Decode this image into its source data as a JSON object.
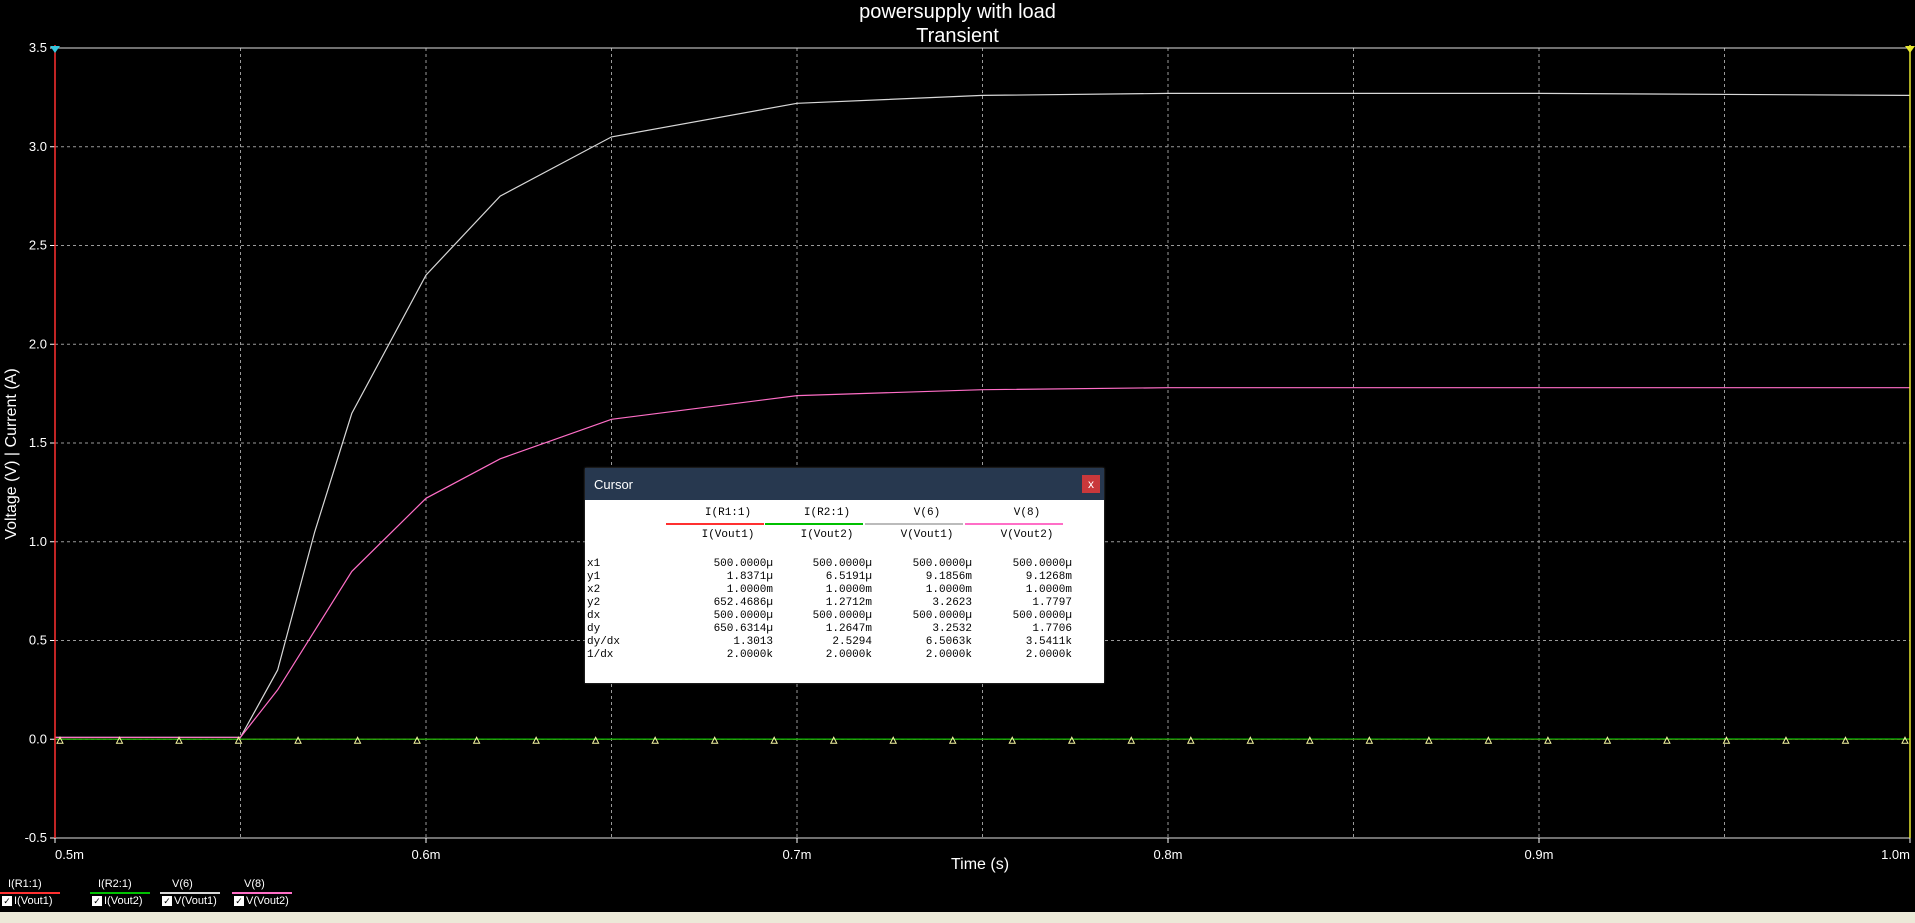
{
  "chart_data": {
    "type": "line",
    "title": "powersupply with load",
    "subtitle": "Transient",
    "xlabel": "Time (s)",
    "ylabel": "Voltage (V) | Current (A)",
    "x_ticks": [
      "0.5m",
      "0.6m",
      "0.7m",
      "0.8m",
      "0.9m",
      "1.0m"
    ],
    "y_ticks": [
      "3.5",
      "3.0",
      "2.5",
      "2.0",
      "1.5",
      "1.0",
      "0.5",
      "0.0",
      "-0.5"
    ],
    "xlim": [
      0.0005,
      0.001
    ],
    "ylim": [
      -0.5,
      3.5
    ],
    "grid": true,
    "series": [
      {
        "name": "I(R1:1)",
        "color": "#ff3030",
        "x": [
          0.0005,
          0.001
        ],
        "y": [
          1.8371e-06,
          0.000652
        ]
      },
      {
        "name": "I(R2:1)",
        "color": "#00c000",
        "x": [
          0.0005,
          0.001
        ],
        "y": [
          6.5e-06,
          0.00127
        ]
      },
      {
        "name": "V(6)",
        "color": "#d8d8d8",
        "x": [
          0.0005,
          0.00055,
          0.00056,
          0.00057,
          0.00058,
          0.0006,
          0.00062,
          0.00065,
          0.0007,
          0.00075,
          0.0008,
          0.0009,
          0.001
        ],
        "y": [
          0.0092,
          0.01,
          0.35,
          1.05,
          1.65,
          2.35,
          2.75,
          3.05,
          3.22,
          3.26,
          3.27,
          3.27,
          3.26
        ]
      },
      {
        "name": "V(8)",
        "color": "#ff6ec7",
        "x": [
          0.0005,
          0.00055,
          0.00056,
          0.00058,
          0.0006,
          0.00062,
          0.00065,
          0.0007,
          0.00075,
          0.0008,
          0.0009,
          0.001
        ],
        "y": [
          0.0091,
          0.01,
          0.25,
          0.85,
          1.22,
          1.42,
          1.62,
          1.74,
          1.77,
          1.78,
          1.78,
          1.78
        ]
      }
    ]
  },
  "legend": [
    {
      "top": "I(R1:1)",
      "bottom": "I(Vout1)",
      "color": "#ff3030"
    },
    {
      "top": "I(R2:1)",
      "bottom": "I(Vout2)",
      "color": "#00c000"
    },
    {
      "top": "V(6)",
      "bottom": "V(Vout1)",
      "color": "#d8d8d8"
    },
    {
      "top": "V(8)",
      "bottom": "V(Vout2)",
      "color": "#ff6ec7"
    }
  ],
  "cursor": {
    "title": "Cursor",
    "close": "x",
    "columns": [
      {
        "top": "I(R1:1)",
        "bottom": "I(Vout1)",
        "color": "#ff3030"
      },
      {
        "top": "I(R2:1)",
        "bottom": "I(Vout2)",
        "color": "#00c000"
      },
      {
        "top": "V(6)",
        "bottom": "V(Vout1)",
        "color": "#bbbbbb"
      },
      {
        "top": "V(8)",
        "bottom": "V(Vout2)",
        "color": "#ff6ec7"
      }
    ],
    "rows": [
      {
        "label": "x1",
        "values": [
          "500.0000µ",
          "500.0000µ",
          "500.0000µ",
          "500.0000µ"
        ]
      },
      {
        "label": "y1",
        "values": [
          "1.8371µ",
          "6.5191µ",
          "9.1856m",
          "9.1268m"
        ]
      },
      {
        "label": "x2",
        "values": [
          "1.0000m",
          "1.0000m",
          "1.0000m",
          "1.0000m"
        ]
      },
      {
        "label": "y2",
        "values": [
          "652.4686µ",
          "1.2712m",
          "3.2623",
          "1.7797"
        ]
      },
      {
        "label": "dx",
        "values": [
          "500.0000µ",
          "500.0000µ",
          "500.0000µ",
          "500.0000µ"
        ]
      },
      {
        "label": "dy",
        "values": [
          "650.6314µ",
          "1.2647m",
          "3.2532",
          "1.7706"
        ]
      },
      {
        "label": "dy/dx",
        "values": [
          "1.3013",
          "2.5294",
          "6.5063k",
          "3.5411k"
        ]
      },
      {
        "label": "1/dx",
        "values": [
          "2.0000k",
          "2.0000k",
          "2.0000k",
          "2.0000k"
        ]
      }
    ]
  }
}
